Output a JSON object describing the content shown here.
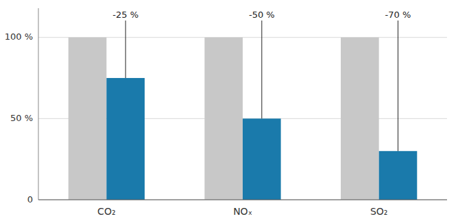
{
  "chart_data": {
    "type": "bar",
    "categories": [
      "CO₂",
      "NOₓ",
      "SO₂"
    ],
    "series": [
      {
        "color": "#c8c8c8",
        "values": [
          100,
          100,
          100
        ]
      },
      {
        "color": "#1a7aab",
        "values": [
          75,
          50,
          30
        ]
      }
    ],
    "annotations": [
      "-25 %",
      "-50 %",
      "-70 %"
    ],
    "ylim": [
      0,
      118
    ],
    "yticks": [
      0,
      {
        "value": 50,
        "label": "50 %"
      },
      {
        "value": 100,
        "label": "100 %"
      }
    ],
    "grid": true
  }
}
